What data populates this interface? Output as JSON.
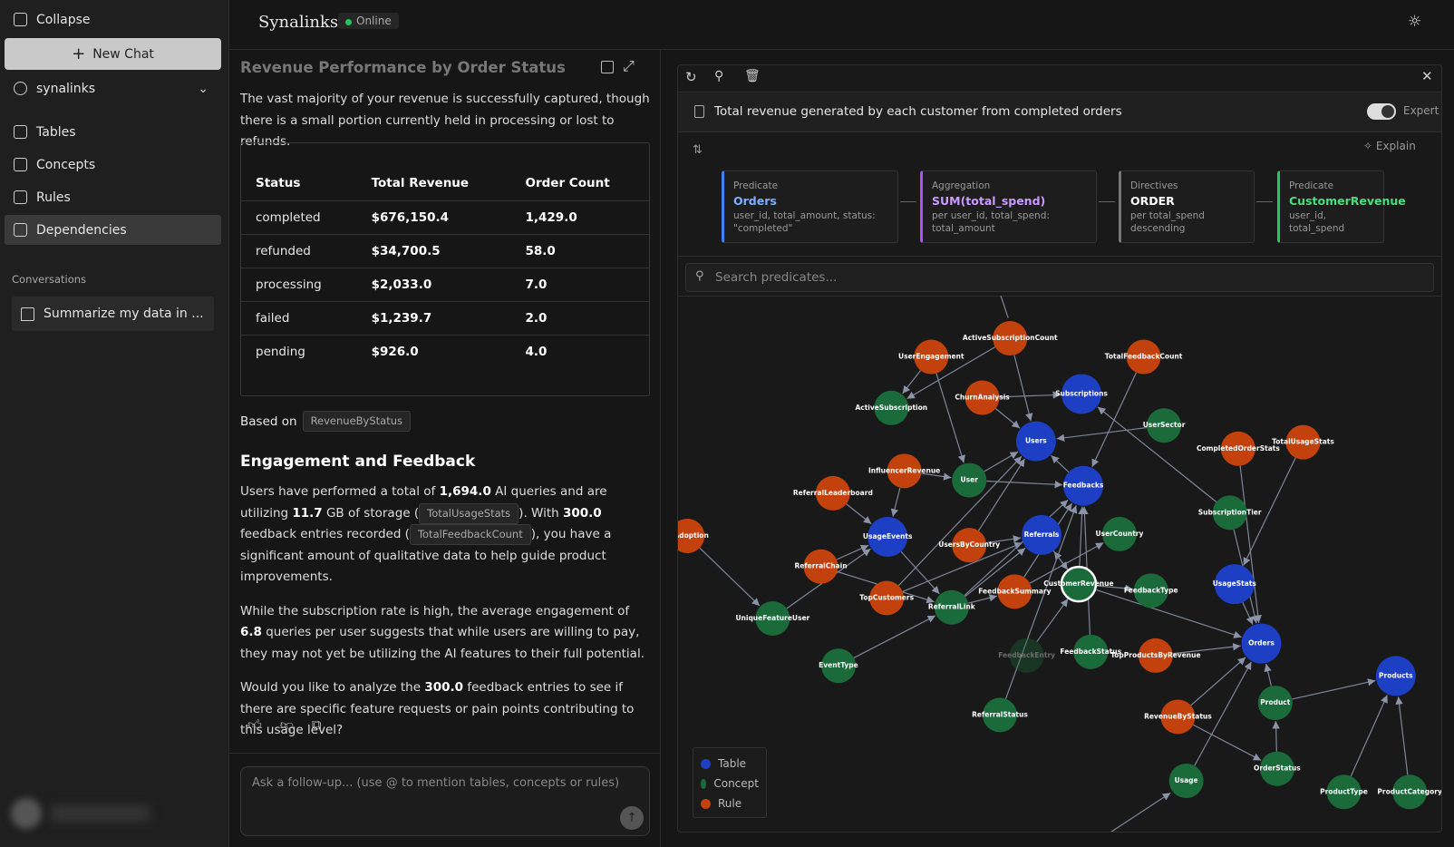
{
  "sidebar": {
    "collapse": "Collapse",
    "new_chat": "New Chat",
    "workspace": "synalinks",
    "nav": [
      "Tables",
      "Concepts",
      "Rules",
      "Dependencies"
    ],
    "conversations_heading": "Conversations",
    "conversations": [
      "Summarize my data in ..."
    ]
  },
  "header": {
    "brand": "Synalinks",
    "status": "Online"
  },
  "chat": {
    "title": "Revenue Performance by Order Status",
    "intro": "The vast majority of your revenue is successfully captured, though there is a small portion currently held in processing or lost to refunds.",
    "table": {
      "headers": [
        "Status",
        "Total Revenue",
        "Order Count"
      ],
      "rows": [
        [
          "completed",
          "$676,150.4",
          "1,429.0"
        ],
        [
          "refunded",
          "$34,700.5",
          "58.0"
        ],
        [
          "processing",
          "$2,033.0",
          "7.0"
        ],
        [
          "failed",
          "$1,239.7",
          "2.0"
        ],
        [
          "pending",
          "$926.0",
          "4.0"
        ]
      ]
    },
    "based_on_label": "Based on",
    "based_on_tag": "RevenueByStatus",
    "heading": "Engagement and Feedback",
    "paragraphs": [
      [
        {
          "t": "Users have performed a total of "
        },
        {
          "b": "1,694.0"
        },
        {
          "t": " AI queries and are utilizing "
        },
        {
          "b": "11.7"
        },
        {
          "t": " GB of storage ("
        },
        {
          "tag": "TotalUsageStats"
        },
        {
          "t": "). With "
        },
        {
          "b": "300.0"
        },
        {
          "t": " feedback entries recorded ("
        },
        {
          "tag": "TotalFeedbackCount"
        },
        {
          "t": "), you have a significant amount of qualitative data to help guide product improvements."
        }
      ],
      [
        {
          "t": "While the subscription rate is high, the average engagement of "
        },
        {
          "b": "6.8"
        },
        {
          "t": " queries per user suggests that while users are willing to pay, they may not yet be utilizing the AI features to their full potential."
        }
      ],
      [
        {
          "t": "Would you like to analyze the "
        },
        {
          "b": "300.0"
        },
        {
          "t": " feedback entries to see if there are specific feature requests or pain points contributing to this usage level?"
        }
      ]
    ],
    "input_placeholder": "Ask a follow-up... (use @ to mention tables, concepts or rules)"
  },
  "graph": {
    "query": "Total revenue generated by each customer from completed orders",
    "expert": "Expert",
    "explain": "Explain",
    "steps": [
      {
        "kind": "Predicate",
        "name": "Orders",
        "detail": "user_id, total_amount, status: \"completed\""
      },
      {
        "kind": "Aggregation",
        "name": "SUM(total_spend)",
        "detail": "per user_id, total_spend: total_amount"
      },
      {
        "kind": "Directives",
        "name": "ORDER",
        "detail": "per total_spend descending"
      },
      {
        "kind": "Predicate",
        "name": "CustomerRevenue",
        "detail": "user_id, total_spend"
      }
    ],
    "search_placeholder": "Search predicates...",
    "legend": [
      "Table",
      "Concept",
      "Rule"
    ],
    "nodes": [
      "ActiveSubscriptionCount",
      "UserEngagement",
      "TotalFeedbackCount",
      "Subscriptions",
      "ChurnAnalysis",
      "ActiveSubscription",
      "UserSector",
      "Users",
      "TotalUsageStats",
      "CompletedOrderStats",
      "InfluencerRevenue",
      "User",
      "Feedbacks",
      "ReferralLeaderboard",
      "SubscriptionTier",
      "UserCountry",
      "Referrals",
      "UsageEvents",
      "reAdoption",
      "UsersByCountry",
      "ReferralChain",
      "UsageStats",
      "CustomerRevenue",
      "FeedbackType",
      "FeedbackSummary",
      "TopCustomers",
      "ReferralLink",
      "UniqueFeatureUser",
      "Orders",
      "FeedbackStatus",
      "FeedbackEntry",
      "TopProductsByRevenue",
      "EventType",
      "Products",
      "Product",
      "ReferralStatus",
      "RevenueByStatus",
      "OrderStatus",
      "Usage",
      "ProductType",
      "ProductCategory"
    ]
  }
}
